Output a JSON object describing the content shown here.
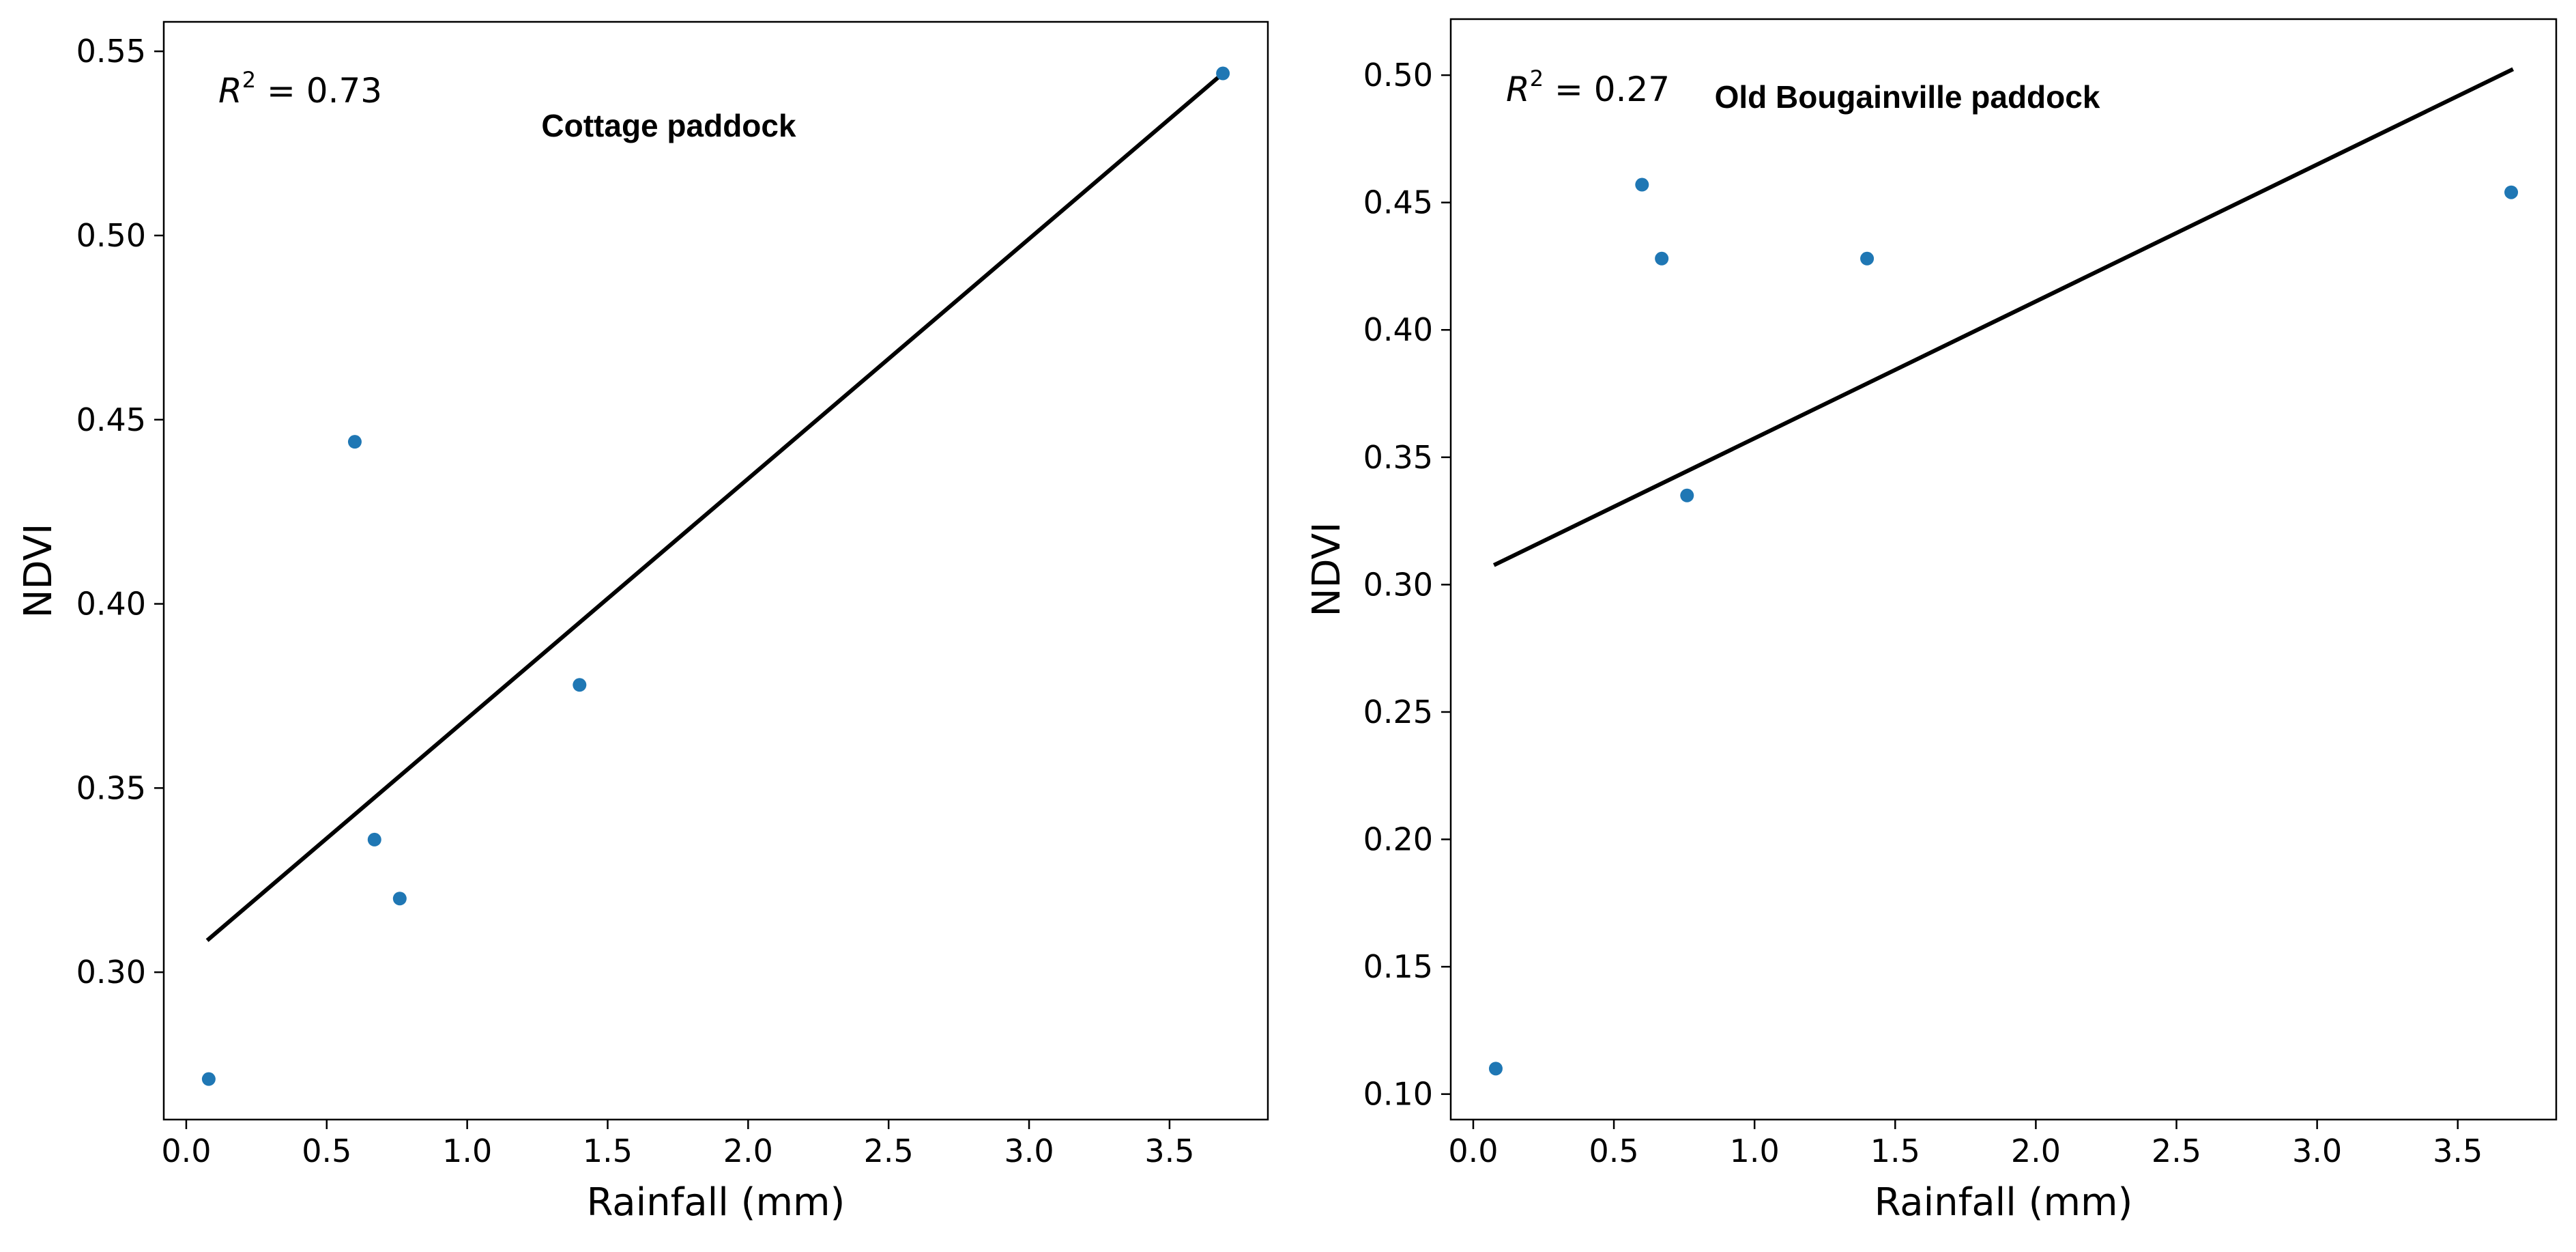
{
  "chart_data": [
    {
      "type": "scatter",
      "title": "Cottage paddock",
      "annotation": {
        "label": "R",
        "superscript": "2",
        "value": " = 0.73"
      },
      "xlabel": "Rainfall (mm)",
      "ylabel": "NDVI",
      "xlim": [
        -0.08,
        3.85
      ],
      "ylim": [
        0.26,
        0.558
      ],
      "xticks": [
        "0.0",
        "0.5",
        "1.0",
        "1.5",
        "2.0",
        "2.5",
        "3.0",
        "3.5"
      ],
      "yticks": [
        "0.30",
        "0.35",
        "0.40",
        "0.45",
        "0.50",
        "0.55"
      ],
      "grid": false,
      "points": [
        {
          "x": 0.08,
          "y": 0.271
        },
        {
          "x": 0.6,
          "y": 0.444
        },
        {
          "x": 0.67,
          "y": 0.336
        },
        {
          "x": 0.76,
          "y": 0.32
        },
        {
          "x": 1.4,
          "y": 0.378
        },
        {
          "x": 3.69,
          "y": 0.544
        }
      ],
      "fit_line": {
        "x": [
          0.08,
          3.69
        ],
        "y": [
          0.309,
          0.544
        ]
      },
      "point_color": "#1f77b4",
      "line_color": "#000000"
    },
    {
      "type": "scatter",
      "title": "Old Bougainville paddock",
      "annotation": {
        "label": "R",
        "superscript": "2",
        "value": " = 0.27"
      },
      "xlabel": "Rainfall (mm)",
      "ylabel": "NDVI",
      "xlim": [
        -0.08,
        3.85
      ],
      "ylim": [
        0.09,
        0.522
      ],
      "xticks": [
        "0.0",
        "0.5",
        "1.0",
        "1.5",
        "2.0",
        "2.5",
        "3.0",
        "3.5"
      ],
      "yticks": [
        "0.10",
        "0.15",
        "0.20",
        "0.25",
        "0.30",
        "0.35",
        "0.40",
        "0.45",
        "0.50"
      ],
      "grid": false,
      "points": [
        {
          "x": 0.08,
          "y": 0.11
        },
        {
          "x": 0.6,
          "y": 0.457
        },
        {
          "x": 0.67,
          "y": 0.428
        },
        {
          "x": 0.76,
          "y": 0.335
        },
        {
          "x": 1.4,
          "y": 0.428
        },
        {
          "x": 3.69,
          "y": 0.454
        }
      ],
      "fit_line": {
        "x": [
          0.08,
          3.69
        ],
        "y": [
          0.308,
          0.502
        ]
      },
      "point_color": "#1f77b4",
      "line_color": "#000000"
    }
  ]
}
